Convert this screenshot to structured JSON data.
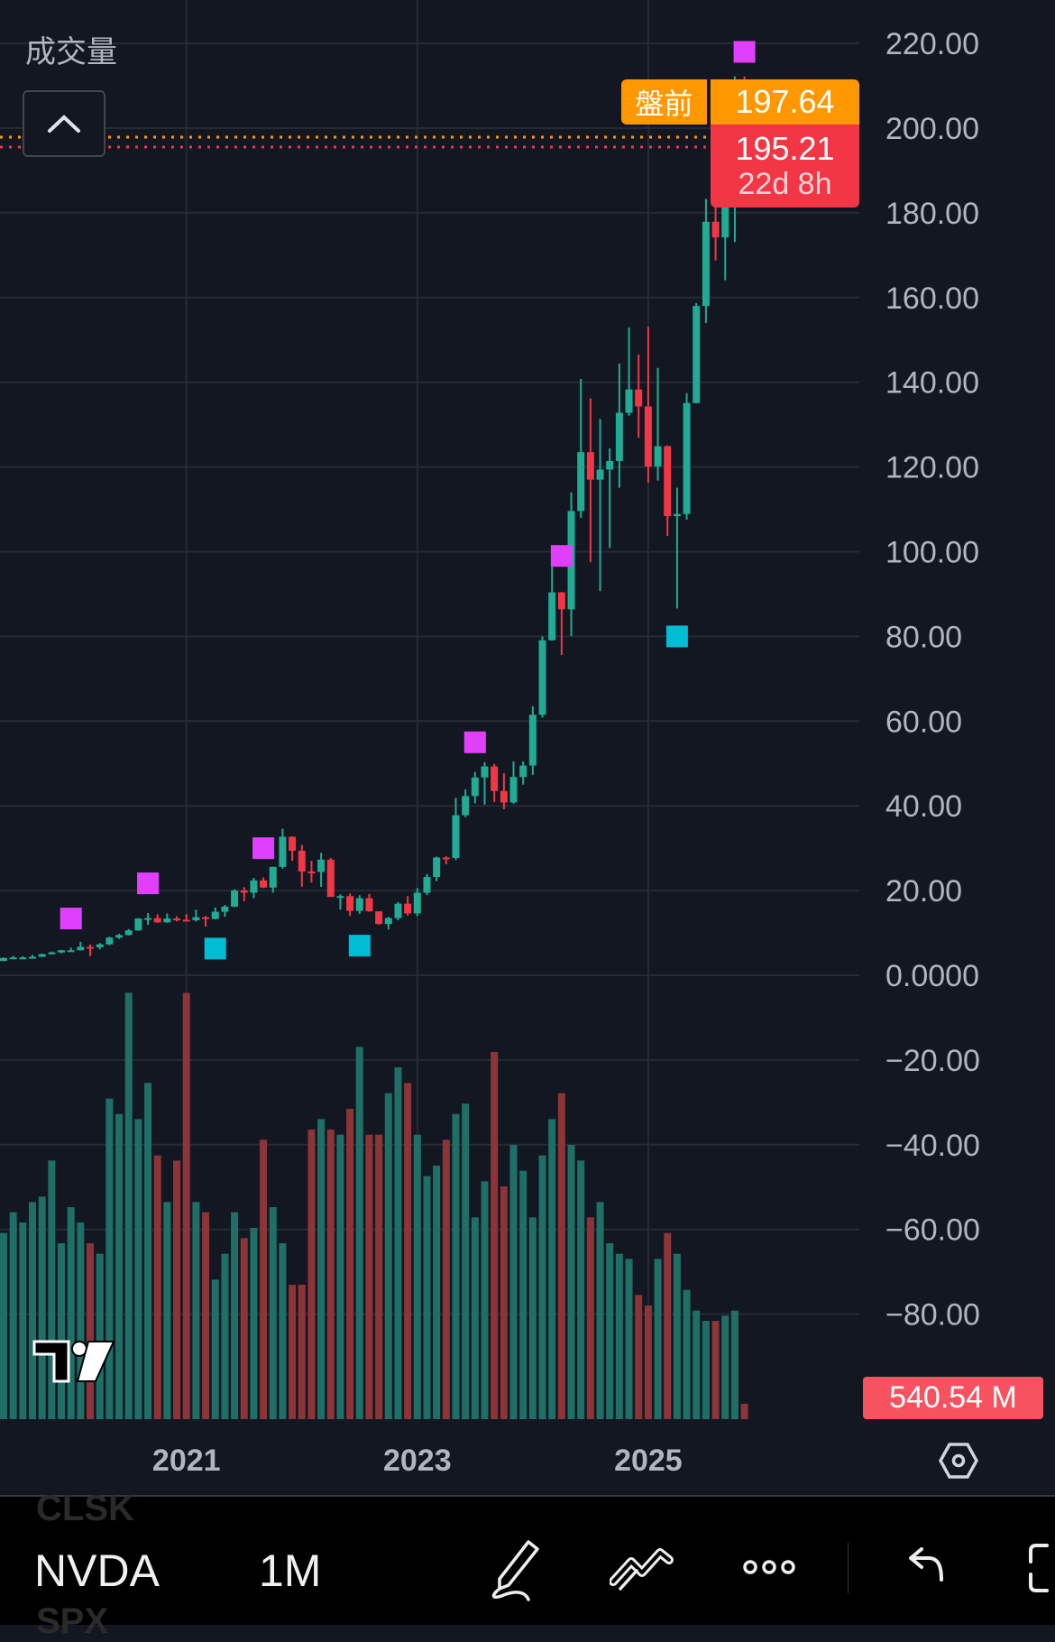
{
  "volume_indicator_title": "成交量",
  "premarket": {
    "label": "盤前",
    "price": "197.64",
    "color": "#ff9800"
  },
  "last_price": {
    "price": "195.21",
    "countdown": "22d 8h",
    "color": "#f23645"
  },
  "volume_last_label": "540.54 M",
  "toolbar": {
    "symbol": "NVDA",
    "interval": "1M",
    "ghost_symbols": [
      "CLSK",
      "SPX"
    ],
    "icons": [
      "pen-icon",
      "multi-line-icon",
      "more-icon",
      "undo-icon",
      "fullscreen-icon"
    ]
  },
  "colors": {
    "up": "#22ab94",
    "down": "#f23645",
    "vol_up": "#1f6f66",
    "vol_down": "#8c3438",
    "signal_top": "#e040fb",
    "signal_bottom": "#00bcd4",
    "background": "#131722",
    "grid": "#262a35"
  },
  "chart_data": {
    "type": "candlestick",
    "interval": "monthly",
    "y_ticks": [
      "220.00",
      "200.00",
      "180.00",
      "160.00",
      "140.00",
      "120.00",
      "100.00",
      "80.00",
      "60.00",
      "40.00",
      "20.00",
      "0.0000",
      "−20.00",
      "−40.00",
      "−60.00",
      "−80.00"
    ],
    "y_tick_values": [
      220,
      200,
      180,
      160,
      140,
      120,
      100,
      80,
      60,
      40,
      20,
      0,
      -20,
      -40,
      -60,
      -80
    ],
    "ylim": [
      -100,
      230
    ],
    "x_ticks": [
      "2021",
      "2023",
      "2025"
    ],
    "grid": true,
    "columns": [
      "date",
      "open",
      "high",
      "low",
      "close",
      "volume_millions"
    ],
    "candles": [
      [
        "2019-06",
        3.4,
        4.2,
        3.3,
        4.1,
        6550
      ],
      [
        "2019-07",
        4.1,
        4.6,
        4.0,
        4.2,
        7280
      ],
      [
        "2019-08",
        4.2,
        4.5,
        3.8,
        4.2,
        6920
      ],
      [
        "2019-09",
        4.2,
        4.8,
        4.1,
        4.35,
        7640
      ],
      [
        "2019-10",
        4.35,
        5.1,
        4.3,
        5.0,
        7830
      ],
      [
        "2019-11",
        5.0,
        5.6,
        4.9,
        5.4,
        9100
      ],
      [
        "2019-12",
        5.4,
        6.0,
        5.2,
        5.9,
        6190
      ],
      [
        "2020-01",
        5.9,
        6.5,
        5.8,
        5.9,
        7460
      ],
      [
        "2020-02",
        5.9,
        7.9,
        5.9,
        6.7,
        6920
      ],
      [
        "2020-03",
        6.7,
        7.3,
        4.5,
        6.6,
        6190
      ],
      [
        "2020-04",
        6.6,
        7.6,
        6.1,
        7.3,
        5820
      ],
      [
        "2020-05",
        7.3,
        9.1,
        7.1,
        8.9,
        11280
      ],
      [
        "2020-06",
        8.9,
        9.8,
        8.6,
        9.5,
        10740
      ],
      [
        "2020-07",
        9.5,
        10.9,
        9.4,
        10.6,
        15000
      ],
      [
        "2020-08",
        10.6,
        13.5,
        10.5,
        13.4,
        10560
      ],
      [
        "2020-09",
        13.4,
        14.7,
        11.9,
        13.5,
        11830
      ],
      [
        "2020-10",
        13.5,
        14.4,
        12.4,
        12.5,
        9280
      ],
      [
        "2020-11",
        12.5,
        14.6,
        12.4,
        13.4,
        7640
      ],
      [
        "2020-12",
        13.4,
        13.9,
        12.7,
        13.1,
        9100
      ],
      [
        "2021-01",
        13.1,
        14.4,
        12.7,
        13.0,
        15000
      ],
      [
        "2021-02",
        13.0,
        15.5,
        12.7,
        13.7,
        7640
      ],
      [
        "2021-03",
        13.7,
        14.0,
        11.5,
        13.3,
        7280
      ],
      [
        "2021-04",
        13.3,
        16.0,
        13.2,
        15.0,
        4910
      ],
      [
        "2021-05",
        15.0,
        16.6,
        13.8,
        16.2,
        5820
      ],
      [
        "2021-06",
        16.2,
        20.3,
        16.1,
        20.0,
        7280
      ],
      [
        "2021-07",
        20.0,
        20.8,
        17.5,
        19.5,
        6370
      ],
      [
        "2021-08",
        19.5,
        23.0,
        18.2,
        22.4,
        6730
      ],
      [
        "2021-09",
        22.4,
        23.1,
        20.6,
        20.7,
        9830
      ],
      [
        "2021-10",
        20.7,
        25.6,
        19.5,
        25.6,
        7460
      ],
      [
        "2021-11",
        25.6,
        34.6,
        25.2,
        32.7,
        6190
      ],
      [
        "2021-12",
        32.7,
        32.8,
        27.0,
        29.4,
        4730
      ],
      [
        "2022-01",
        29.4,
        30.8,
        20.9,
        24.5,
        4730
      ],
      [
        "2022-02",
        24.5,
        27.0,
        21.9,
        24.4,
        10190
      ],
      [
        "2022-03",
        24.4,
        28.9,
        20.9,
        27.3,
        10560
      ],
      [
        "2022-04",
        27.3,
        27.7,
        18.5,
        18.5,
        10190
      ],
      [
        "2022-05",
        18.5,
        19.1,
        15.5,
        18.7,
        10010
      ],
      [
        "2022-06",
        18.7,
        19.3,
        14.0,
        15.2,
        10920
      ],
      [
        "2022-07",
        15.2,
        18.9,
        14.5,
        18.2,
        13100
      ],
      [
        "2022-08",
        18.2,
        19.2,
        15.0,
        15.1,
        10010
      ],
      [
        "2022-09",
        15.1,
        15.1,
        12.0,
        12.1,
        10010
      ],
      [
        "2022-10",
        12.1,
        13.8,
        10.8,
        13.5,
        11470
      ],
      [
        "2022-11",
        13.5,
        17.3,
        13.0,
        16.9,
        12380
      ],
      [
        "2022-12",
        16.9,
        18.7,
        14.1,
        14.6,
        11830
      ],
      [
        "2023-01",
        14.6,
        20.6,
        14.0,
        19.5,
        10010
      ],
      [
        "2023-02",
        19.5,
        23.9,
        18.9,
        23.2,
        8550
      ],
      [
        "2023-03",
        23.2,
        28.0,
        22.2,
        27.8,
        8920
      ],
      [
        "2023-04",
        27.8,
        28.1,
        26.2,
        27.7,
        9830
      ],
      [
        "2023-05",
        27.7,
        41.9,
        27.2,
        37.8,
        10740
      ],
      [
        "2023-06",
        37.8,
        43.9,
        37.3,
        42.3,
        11100
      ],
      [
        "2023-07",
        42.3,
        48.0,
        40.6,
        46.7,
        7100
      ],
      [
        "2023-08",
        46.7,
        50.3,
        40.3,
        49.3,
        8370
      ],
      [
        "2023-09",
        49.3,
        49.9,
        40.9,
        43.5,
        12920
      ],
      [
        "2023-10",
        43.5,
        47.7,
        39.2,
        40.8,
        8190
      ],
      [
        "2023-11",
        40.8,
        50.5,
        40.5,
        46.8,
        9650
      ],
      [
        "2023-12",
        46.8,
        50.5,
        45.0,
        49.5,
        8740
      ],
      [
        "2024-01",
        49.5,
        63.5,
        47.3,
        61.5,
        7100
      ],
      [
        "2024-02",
        61.5,
        80.0,
        60.8,
        79.1,
        9280
      ],
      [
        "2024-03",
        79.1,
        97.4,
        79.0,
        90.4,
        10560
      ],
      [
        "2024-04",
        90.4,
        90.5,
        75.6,
        86.4,
        11470
      ],
      [
        "2024-05",
        86.4,
        114.0,
        80.1,
        109.6,
        9650
      ],
      [
        "2024-06",
        109.6,
        140.8,
        108.0,
        123.5,
        9100
      ],
      [
        "2024-07",
        123.5,
        136.2,
        97.5,
        117.0,
        7100
      ],
      [
        "2024-08",
        117.0,
        131.3,
        90.7,
        119.4,
        7640
      ],
      [
        "2024-09",
        119.4,
        124.4,
        100.9,
        121.4,
        6190
      ],
      [
        "2024-10",
        121.4,
        144.4,
        115.1,
        132.8,
        5820
      ],
      [
        "2024-11",
        132.8,
        152.9,
        132.1,
        138.3,
        5640
      ],
      [
        "2024-12",
        138.3,
        146.5,
        126.9,
        134.3,
        4370
      ],
      [
        "2025-01",
        134.3,
        153.1,
        116.3,
        120.1,
        4000
      ],
      [
        "2025-02",
        120.1,
        143.4,
        116.8,
        124.9,
        5640
      ],
      [
        "2025-03",
        124.9,
        125.1,
        103.7,
        108.4,
        6550
      ],
      [
        "2025-04",
        108.4,
        115.1,
        86.6,
        108.9,
        5820
      ],
      [
        "2025-05",
        108.9,
        137.4,
        107.6,
        135.1,
        4550
      ],
      [
        "2025-06",
        135.1,
        158.7,
        135.0,
        158.0,
        3820
      ],
      [
        "2025-07",
        158.0,
        183.3,
        154.0,
        177.9,
        3460
      ],
      [
        "2025-08",
        177.9,
        184.5,
        168.8,
        174.2,
        3460
      ],
      [
        "2025-09",
        174.2,
        191.1,
        164.1,
        186.6,
        3640
      ],
      [
        "2025-10",
        186.6,
        212.2,
        173.1,
        202.5,
        3820
      ],
      [
        "2025-11",
        208.0,
        212.2,
        194.5,
        195.21,
        540.54
      ]
    ],
    "signals": [
      {
        "date": "2020-01",
        "price": 13.4,
        "type": "top"
      },
      {
        "date": "2020-09",
        "price": 21.7,
        "type": "top"
      },
      {
        "date": "2021-09",
        "price": 30,
        "type": "top"
      },
      {
        "date": "2023-07",
        "price": 55,
        "type": "top"
      },
      {
        "date": "2024-04",
        "price": 99,
        "type": "top"
      },
      {
        "date": "2025-11",
        "price": 218,
        "type": "top"
      },
      {
        "date": "2021-04",
        "price": 6.3,
        "type": "bottom"
      },
      {
        "date": "2022-07",
        "price": 7,
        "type": "bottom"
      },
      {
        "date": "2025-04",
        "price": 80,
        "type": "bottom"
      }
    ],
    "premarket_price": 197.64,
    "last_price": 195.21
  }
}
